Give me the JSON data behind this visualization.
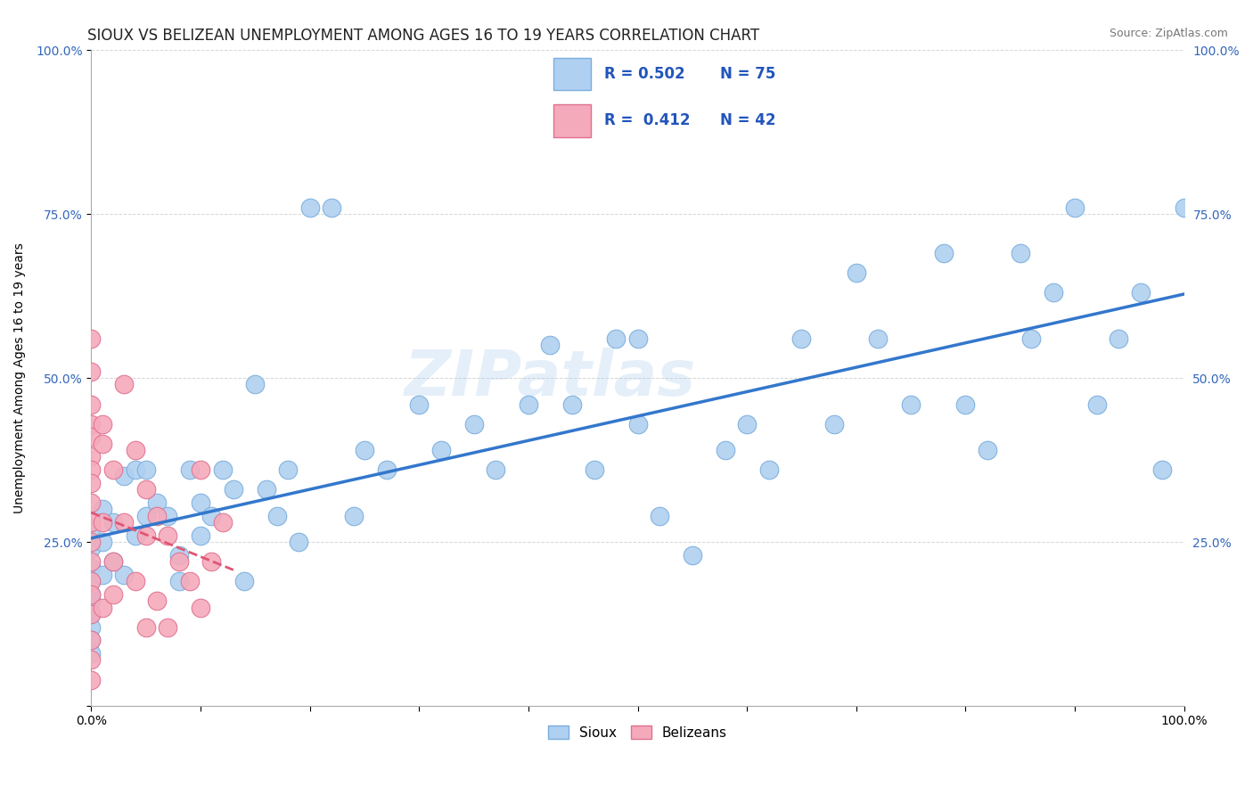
{
  "title": "SIOUX VS BELIZEAN UNEMPLOYMENT AMONG AGES 16 TO 19 YEARS CORRELATION CHART",
  "source": "Source: ZipAtlas.com",
  "ylabel": "Unemployment Among Ages 16 to 19 years",
  "xlim": [
    0.0,
    1.0
  ],
  "ylim": [
    0.0,
    1.0
  ],
  "xticks": [
    0.0,
    0.1,
    0.2,
    0.3,
    0.4,
    0.5,
    0.6,
    0.7,
    0.8,
    0.9,
    1.0
  ],
  "xticklabels": [
    "0.0%",
    "",
    "",
    "",
    "",
    "",
    "",
    "",
    "",
    "",
    "100.0%"
  ],
  "yticks": [
    0.0,
    0.25,
    0.5,
    0.75,
    1.0
  ],
  "yticklabels": [
    "",
    "25.0%",
    "50.0%",
    "75.0%",
    "100.0%"
  ],
  "sioux_color": "#afd0f0",
  "belizean_color": "#f5aabb",
  "sioux_edge_color": "#7aaedd",
  "belizean_edge_color": "#e07090",
  "trend_sioux_color": "#3377cc",
  "trend_belizean_color": "#e05575",
  "watermark": "ZIPatlas",
  "legend_R_sioux": "0.502",
  "legend_N_sioux": "75",
  "legend_R_belizean": "0.412",
  "legend_N_belizean": "42",
  "sioux_x": [
    0.0,
    0.0,
    0.0,
    0.0,
    0.0,
    0.0,
    0.0,
    0.0,
    0.0,
    0.0,
    0.01,
    0.01,
    0.01,
    0.02,
    0.02,
    0.03,
    0.03,
    0.04,
    0.04,
    0.05,
    0.05,
    0.06,
    0.07,
    0.08,
    0.08,
    0.09,
    0.1,
    0.1,
    0.11,
    0.12,
    0.13,
    0.14,
    0.15,
    0.16,
    0.17,
    0.18,
    0.19,
    0.2,
    0.22,
    0.24,
    0.25,
    0.27,
    0.3,
    0.32,
    0.35,
    0.37,
    0.4,
    0.42,
    0.44,
    0.46,
    0.48,
    0.5,
    0.5,
    0.52,
    0.55,
    0.58,
    0.6,
    0.62,
    0.65,
    0.68,
    0.7,
    0.72,
    0.75,
    0.78,
    0.8,
    0.82,
    0.85,
    0.86,
    0.88,
    0.9,
    0.92,
    0.94,
    0.96,
    0.98,
    1.0
  ],
  "sioux_y": [
    0.27,
    0.24,
    0.21,
    0.19,
    0.17,
    0.16,
    0.14,
    0.12,
    0.1,
    0.08,
    0.3,
    0.25,
    0.2,
    0.28,
    0.22,
    0.35,
    0.2,
    0.26,
    0.36,
    0.29,
    0.36,
    0.31,
    0.29,
    0.19,
    0.23,
    0.36,
    0.26,
    0.31,
    0.29,
    0.36,
    0.33,
    0.19,
    0.49,
    0.33,
    0.29,
    0.36,
    0.25,
    0.76,
    0.76,
    0.29,
    0.39,
    0.36,
    0.46,
    0.39,
    0.43,
    0.36,
    0.46,
    0.55,
    0.46,
    0.36,
    0.56,
    0.43,
    0.56,
    0.29,
    0.23,
    0.39,
    0.43,
    0.36,
    0.56,
    0.43,
    0.66,
    0.56,
    0.46,
    0.69,
    0.46,
    0.39,
    0.69,
    0.56,
    0.63,
    0.76,
    0.46,
    0.56,
    0.63,
    0.36,
    0.76
  ],
  "belizean_x": [
    0.0,
    0.0,
    0.0,
    0.0,
    0.0,
    0.0,
    0.0,
    0.0,
    0.0,
    0.0,
    0.0,
    0.0,
    0.0,
    0.0,
    0.0,
    0.0,
    0.0,
    0.0,
    0.01,
    0.01,
    0.01,
    0.01,
    0.02,
    0.02,
    0.02,
    0.03,
    0.03,
    0.04,
    0.04,
    0.05,
    0.05,
    0.05,
    0.06,
    0.06,
    0.07,
    0.07,
    0.08,
    0.09,
    0.1,
    0.1,
    0.11,
    0.12
  ],
  "belizean_y": [
    0.56,
    0.51,
    0.46,
    0.43,
    0.41,
    0.38,
    0.36,
    0.34,
    0.31,
    0.28,
    0.25,
    0.22,
    0.19,
    0.17,
    0.14,
    0.1,
    0.07,
    0.04,
    0.43,
    0.4,
    0.28,
    0.15,
    0.36,
    0.22,
    0.17,
    0.49,
    0.28,
    0.39,
    0.19,
    0.33,
    0.26,
    0.12,
    0.29,
    0.16,
    0.26,
    0.12,
    0.22,
    0.19,
    0.36,
    0.15,
    0.22,
    0.28
  ],
  "grid_color": "#cccccc",
  "background_color": "#ffffff",
  "title_fontsize": 12,
  "label_fontsize": 10,
  "tick_fontsize": 10,
  "legend_fontsize": 12
}
